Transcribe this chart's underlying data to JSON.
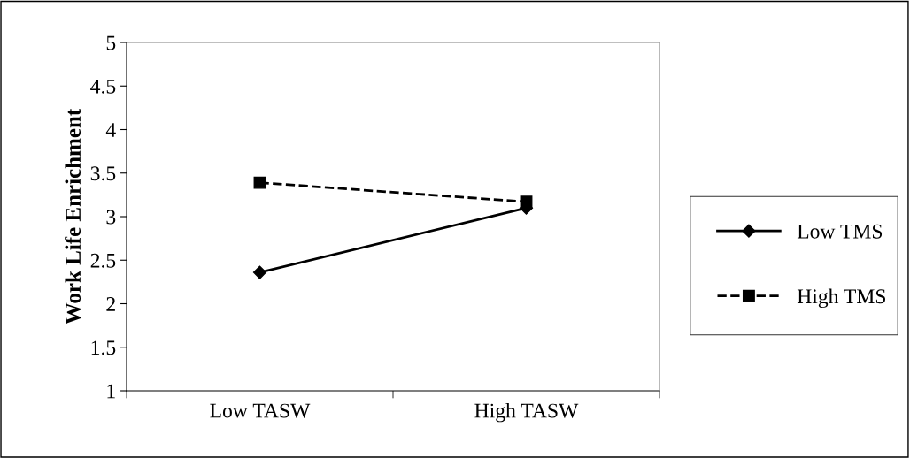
{
  "chart_data": {
    "type": "line",
    "ylabel": "Work Life Enrichment",
    "categories": [
      "Low TASW",
      "High TASW"
    ],
    "series": [
      {
        "name": "Low TMS",
        "color": "#000000",
        "values": [
          2.36,
          3.1
        ],
        "marker": "diamond",
        "line_style": "solid"
      },
      {
        "name": "High TMS",
        "color": "#000000",
        "values": [
          3.39,
          3.17
        ],
        "marker": "square",
        "line_style": "dashed"
      }
    ],
    "ylim": [
      1,
      5
    ],
    "yticks": [
      1,
      1.5,
      2,
      2.5,
      3,
      3.5,
      4,
      4.5,
      5
    ],
    "grid": false,
    "legend": "right"
  }
}
